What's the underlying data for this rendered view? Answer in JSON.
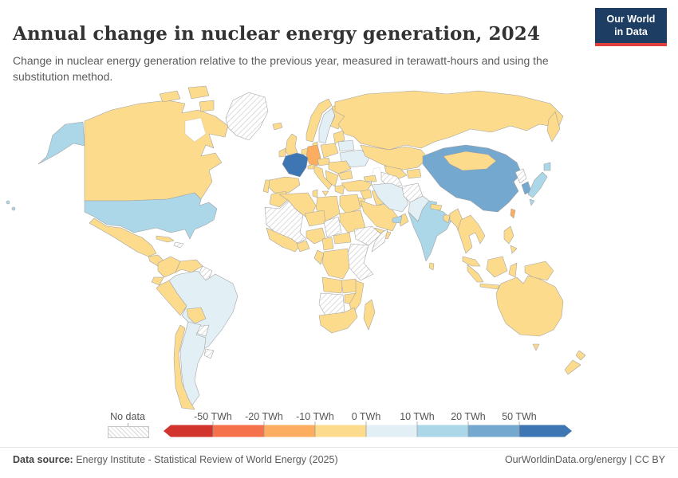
{
  "header": {
    "title": "Annual change in nuclear energy generation, 2024",
    "subtitle": "Change in nuclear energy generation relative to the previous year, measured in terawatt-hours and using the substitution method."
  },
  "logo": {
    "line1": "Our World",
    "line2": "in Data",
    "bg_color": "#1d3d63",
    "accent_color": "#e0403d"
  },
  "legend": {
    "no_data_label": "No data",
    "ticks": [
      "-50 TWh",
      "-20 TWh",
      "-10 TWh",
      "0 TWh",
      "10 TWh",
      "20 TWh",
      "50 TWh"
    ],
    "bucket_colors": [
      "#d1342c",
      "#f4714b",
      "#fcad60",
      "#fcdb8d",
      "#e2eff5",
      "#abd7e8",
      "#74a8ce",
      "#3d76b2"
    ]
  },
  "footer": {
    "datasource_label": "Data source:",
    "datasource_text": "Energy Institute - Statistical Review of World Energy (2025)",
    "link": "OurWorldinData.org/energy",
    "separator": "|",
    "license": "CC BY"
  },
  "chart_data": {
    "type": "choropleth",
    "title": "Annual change in nuclear energy generation, 2024",
    "unit": "TWh",
    "color_scale": {
      "tick_values": [
        -50,
        -20,
        -10,
        0,
        10,
        20,
        50
      ],
      "bucket_labels": [
        "less than -50 TWh",
        "-50 to -20 TWh",
        "-20 to -10 TWh",
        "-10 to 0 TWh",
        "0 to 10 TWh",
        "10 to 20 TWh",
        "20 to 50 TWh",
        "more than 50 TWh"
      ],
      "no_data": "No data (hatched)"
    },
    "values_by_bucket": {
      "-20 to -10 TWh": [
        "Germany",
        "Taiwan"
      ],
      "-10 to 0 TWh": [
        "Canada",
        "Mexico",
        "Russia",
        "United Kingdom",
        "Spain",
        "Norway",
        "Finland",
        "Italy",
        "Poland",
        "Turkey",
        "Saudi Arabia",
        "Kazakhstan",
        "Mongolia",
        "Egypt",
        "South Africa",
        "Australia",
        "New Zealand",
        "Indonesia",
        "Philippines",
        "Colombia",
        "Venezuela",
        "Peru",
        "Chile",
        "most of Africa and Southeast Asia"
      ],
      "0 to 10 TWh": [
        "Brazil",
        "Argentina",
        "Sweden",
        "Belarus",
        "Ukraine",
        "Iran",
        "Pakistan",
        "Armenia"
      ],
      "10 to 20 TWh": [
        "United States",
        "Japan",
        "India",
        "United Arab Emirates"
      ],
      "20 to 50 TWh": [
        "China",
        "South Korea"
      ],
      "more than 50 TWh": [
        "France"
      ],
      "no data": [
        "Greenland",
        "Guyana",
        "Suriname",
        "Paraguay",
        "Uruguay",
        "Hispaniola",
        "Mauritania/Mali",
        "Chad",
        "Ethiopia",
        "Somalia",
        "East Africa",
        "Namibia/Botswana",
        "Turkmenistan",
        "Afghanistan",
        "North Korea"
      ]
    }
  },
  "map": {
    "regions": [
      {
        "id": "alaska",
        "name": "Alaska (United States)",
        "bucket": 5
      },
      {
        "id": "canada",
        "name": "Canada",
        "bucket": 3
      },
      {
        "id": "arctic-1",
        "name": "Canadian Arctic islands",
        "bucket": 3
      },
      {
        "id": "arctic-2",
        "name": "Canadian Arctic islands",
        "bucket": 3
      },
      {
        "id": "arctic-3",
        "name": "Canadian Arctic islands",
        "bucket": 3
      },
      {
        "id": "greenland",
        "name": "Greenland",
        "bucket": "no-data"
      },
      {
        "id": "usa",
        "name": "United States",
        "bucket": 5
      },
      {
        "id": "hawaii-1",
        "name": "Pacific islands (US)",
        "bucket": 5
      },
      {
        "id": "hawaii-2",
        "name": "Pacific islands (US)",
        "bucket": 5
      },
      {
        "id": "mexico",
        "name": "Mexico",
        "bucket": 3
      },
      {
        "id": "central-america",
        "name": "Central America",
        "bucket": 3
      },
      {
        "id": "cuba",
        "name": "Cuba",
        "bucket": 3
      },
      {
        "id": "hispaniola",
        "name": "Hispaniola",
        "bucket": "no-data"
      },
      {
        "id": "colombia",
        "name": "Colombia",
        "bucket": 3
      },
      {
        "id": "venezuela",
        "name": "Venezuela",
        "bucket": 3
      },
      {
        "id": "guyana",
        "name": "Guyana / Suriname",
        "bucket": "no-data"
      },
      {
        "id": "ecuador",
        "name": "Ecuador",
        "bucket": 3
      },
      {
        "id": "peru",
        "name": "Peru",
        "bucket": 3
      },
      {
        "id": "brazil",
        "name": "Brazil",
        "bucket": 4
      },
      {
        "id": "bolivia",
        "name": "Bolivia",
        "bucket": 3
      },
      {
        "id": "paraguay",
        "name": "Paraguay",
        "bucket": "no-data"
      },
      {
        "id": "uruguay",
        "name": "Uruguay",
        "bucket": "no-data"
      },
      {
        "id": "argentina",
        "name": "Argentina",
        "bucket": 4
      },
      {
        "id": "chile",
        "name": "Chile",
        "bucket": 3
      },
      {
        "id": "iceland",
        "name": "Iceland",
        "bucket": 3
      },
      {
        "id": "uk",
        "name": "United Kingdom",
        "bucket": 3
      },
      {
        "id": "ireland",
        "name": "Ireland",
        "bucket": 3
      },
      {
        "id": "norway",
        "name": "Norway",
        "bucket": 3
      },
      {
        "id": "sweden",
        "name": "Sweden",
        "bucket": 4
      },
      {
        "id": "finland",
        "name": "Finland",
        "bucket": 3
      },
      {
        "id": "baltics",
        "name": "Baltic states",
        "bucket": 3
      },
      {
        "id": "denmark",
        "name": "Denmark",
        "bucket": 3
      },
      {
        "id": "benelux",
        "name": "Benelux",
        "bucket": 3
      },
      {
        "id": "germany",
        "name": "Germany",
        "bucket": 2
      },
      {
        "id": "poland",
        "name": "Poland",
        "bucket": 3
      },
      {
        "id": "belarus",
        "name": "Belarus",
        "bucket": 4
      },
      {
        "id": "ukraine",
        "name": "Ukraine",
        "bucket": 4
      },
      {
        "id": "czech-austria",
        "name": "Czechia / Austria",
        "bucket": 3
      },
      {
        "id": "switzerland",
        "name": "Switzerland",
        "bucket": 3
      },
      {
        "id": "hungary-romania",
        "name": "Hungary / Romania",
        "bucket": 3
      },
      {
        "id": "balkans",
        "name": "Balkans",
        "bucket": 3
      },
      {
        "id": "bulgaria",
        "name": "Bulgaria",
        "bucket": 3
      },
      {
        "id": "greece",
        "name": "Greece",
        "bucket": 3
      },
      {
        "id": "italy",
        "name": "Italy",
        "bucket": 3
      },
      {
        "id": "sicily",
        "name": "Sicily",
        "bucket": 3
      },
      {
        "id": "france",
        "name": "France",
        "bucket": 7
      },
      {
        "id": "spain",
        "name": "Spain",
        "bucket": 3
      },
      {
        "id": "portugal",
        "name": "Portugal",
        "bucket": 3
      },
      {
        "id": "russia",
        "name": "Russia",
        "bucket": 3
      },
      {
        "id": "kamchatka",
        "name": "Russia (Far East)",
        "bucket": 3
      },
      {
        "id": "kazakhstan",
        "name": "Kazakhstan",
        "bucket": 3
      },
      {
        "id": "uzbekistan",
        "name": "Uzbekistan",
        "bucket": 3
      },
      {
        "id": "kyrgyz-tajik",
        "name": "Kyrgyzstan / Tajikistan",
        "bucket": 3
      },
      {
        "id": "turkmenistan",
        "name": "Turkmenistan",
        "bucket": "no-data"
      },
      {
        "id": "caucasus",
        "name": "Georgia / Azerbaijan",
        "bucket": 3
      },
      {
        "id": "armenia",
        "name": "Armenia",
        "bucket": 4
      },
      {
        "id": "turkey",
        "name": "Turkey",
        "bucket": 3
      },
      {
        "id": "syria",
        "name": "Syria",
        "bucket": 3
      },
      {
        "id": "iraq",
        "name": "Iraq",
        "bucket": 3
      },
      {
        "id": "jordan",
        "name": "Jordan / Israel",
        "bucket": 3
      },
      {
        "id": "saudi",
        "name": "Saudi Arabia",
        "bucket": 3
      },
      {
        "id": "yemen",
        "name": "Yemen",
        "bucket": 3
      },
      {
        "id": "oman",
        "name": "Oman",
        "bucket": 3
      },
      {
        "id": "uae",
        "name": "United Arab Emirates",
        "bucket": 5
      },
      {
        "id": "iran",
        "name": "Iran",
        "bucket": 4
      },
      {
        "id": "afghanistan",
        "name": "Afghanistan",
        "bucket": "no-data"
      },
      {
        "id": "pakistan",
        "name": "Pakistan",
        "bucket": 4
      },
      {
        "id": "india",
        "name": "India",
        "bucket": 5
      },
      {
        "id": "sri-lanka",
        "name": "Sri Lanka",
        "bucket": 3
      },
      {
        "id": "nepal",
        "name": "Nepal",
        "bucket": 3
      },
      {
        "id": "bangladesh",
        "name": "Bangladesh",
        "bucket": 3
      },
      {
        "id": "myanmar",
        "name": "Myanmar",
        "bucket": 3
      },
      {
        "id": "indochina",
        "name": "Thailand / Indochina",
        "bucket": 3
      },
      {
        "id": "malaysia",
        "name": "Malaysia",
        "bucket": 3
      },
      {
        "id": "sumatra",
        "name": "Indonesia (Sumatra)",
        "bucket": 3
      },
      {
        "id": "java",
        "name": "Indonesia (Java)",
        "bucket": 3
      },
      {
        "id": "borneo",
        "name": "Indonesia (Borneo)",
        "bucket": 3
      },
      {
        "id": "sulawesi",
        "name": "Indonesia (Sulawesi)",
        "bucket": 3
      },
      {
        "id": "new-guinea",
        "name": "New Guinea",
        "bucket": 3
      },
      {
        "id": "philippines-1",
        "name": "Philippines",
        "bucket": 3
      },
      {
        "id": "philippines-2",
        "name": "Philippines",
        "bucket": 3
      },
      {
        "id": "china",
        "name": "China",
        "bucket": 6
      },
      {
        "id": "mongolia",
        "name": "Mongolia",
        "bucket": 3
      },
      {
        "id": "north-korea",
        "name": "North Korea",
        "bucket": "no-data"
      },
      {
        "id": "south-korea",
        "name": "South Korea",
        "bucket": 6
      },
      {
        "id": "japan-honshu",
        "name": "Japan",
        "bucket": 5
      },
      {
        "id": "japan-hokkaido",
        "name": "Japan (Hokkaido)",
        "bucket": 5
      },
      {
        "id": "japan-kyushu",
        "name": "Japan (Kyushu)",
        "bucket": 5
      },
      {
        "id": "taiwan",
        "name": "Taiwan",
        "bucket": 2
      },
      {
        "id": "morocco",
        "name": "Morocco",
        "bucket": 3
      },
      {
        "id": "algeria",
        "name": "Algeria",
        "bucket": 3
      },
      {
        "id": "tunisia",
        "name": "Tunisia",
        "bucket": 3
      },
      {
        "id": "libya",
        "name": "Libya",
        "bucket": 3
      },
      {
        "id": "egypt",
        "name": "Egypt",
        "bucket": 3
      },
      {
        "id": "mauritania-mali",
        "name": "Mauritania / Mali",
        "bucket": "no-data"
      },
      {
        "id": "niger",
        "name": "Niger",
        "bucket": 3
      },
      {
        "id": "chad",
        "name": "Chad",
        "bucket": "no-data"
      },
      {
        "id": "sudan",
        "name": "Sudan",
        "bucket": 3
      },
      {
        "id": "ethiopia",
        "name": "Ethiopia",
        "bucket": "no-data"
      },
      {
        "id": "somalia",
        "name": "Somalia",
        "bucket": "no-data"
      },
      {
        "id": "west-africa",
        "name": "West African coast",
        "bucket": 3
      },
      {
        "id": "ghana",
        "name": "Ghana / Benin",
        "bucket": 3
      },
      {
        "id": "nigeria",
        "name": "Nigeria",
        "bucket": 3
      },
      {
        "id": "cameroon",
        "name": "Cameroon",
        "bucket": 3
      },
      {
        "id": "car",
        "name": "Central African Republic",
        "bucket": 3
      },
      {
        "id": "gabon",
        "name": "Gabon / Congo",
        "bucket": 3
      },
      {
        "id": "drc",
        "name": "DR Congo",
        "bucket": 3
      },
      {
        "id": "east-africa",
        "name": "Kenya / Tanzania",
        "bucket": "no-data"
      },
      {
        "id": "angola",
        "name": "Angola",
        "bucket": 3
      },
      {
        "id": "zambia",
        "name": "Zambia",
        "bucket": 3
      },
      {
        "id": "zimbabwe",
        "name": "Zimbabwe",
        "bucket": 3
      },
      {
        "id": "mozambique",
        "name": "Mozambique",
        "bucket": 3
      },
      {
        "id": "namibia-botswana",
        "name": "Namibia / Botswana",
        "bucket": "no-data"
      },
      {
        "id": "south-africa",
        "name": "South Africa",
        "bucket": 3
      },
      {
        "id": "madagascar",
        "name": "Madagascar",
        "bucket": 3
      },
      {
        "id": "australia",
        "name": "Australia",
        "bucket": 3
      },
      {
        "id": "tasmania",
        "name": "Tasmania",
        "bucket": 3
      },
      {
        "id": "nz-north",
        "name": "New Zealand (North Island)",
        "bucket": 3
      },
      {
        "id": "nz-south",
        "name": "New Zealand (South Island)",
        "bucket": 3
      }
    ]
  }
}
